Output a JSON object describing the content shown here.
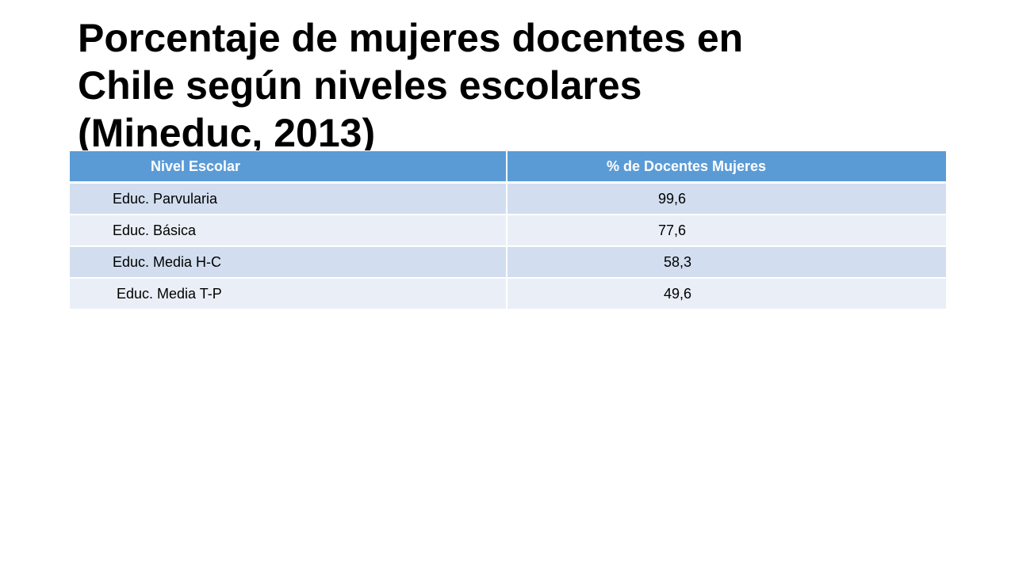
{
  "slide": {
    "title_lines": [
      "Porcentaje de mujeres docentes en",
      "Chile según niveles escolares",
      "(Mineduc, 2013)"
    ]
  },
  "table": {
    "headers": [
      "Nivel Escolar",
      "% de Docentes Mujeres"
    ],
    "rows": [
      [
        "Educ. Parvularia",
        "99,6"
      ],
      [
        "Educ. Básica",
        "77,6"
      ],
      [
        "Educ. Media H-C",
        "58,3"
      ],
      [
        "Educ. Media T-P",
        "49,6"
      ]
    ]
  },
  "colors": {
    "header_bg": "#5b9bd5",
    "row_odd_bg": "#d2deef",
    "row_even_bg": "#eaeff7"
  }
}
